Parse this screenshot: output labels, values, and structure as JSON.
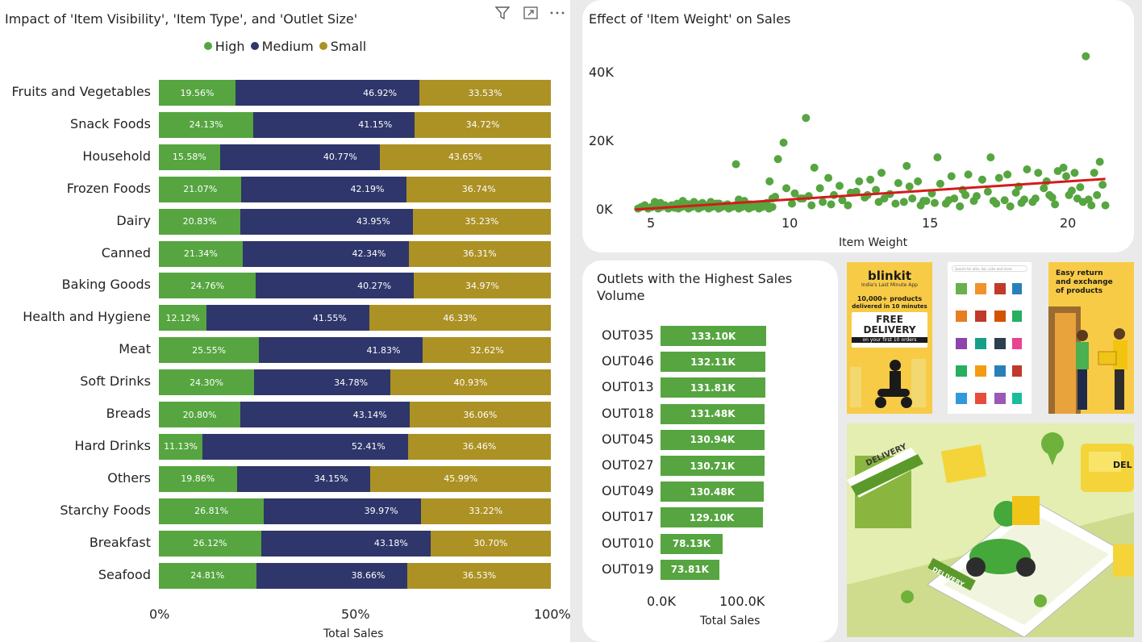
{
  "stack_chart": {
    "title": "Impact of 'Item Visibility', 'Item Type', and 'Outlet Size'",
    "legend": [
      {
        "label": "High",
        "color": "#56a540"
      },
      {
        "label": "Medium",
        "color": "#2e366b"
      },
      {
        "label": "Small",
        "color": "#ac9124"
      }
    ],
    "x_ticks": [
      "0%",
      "50%",
      "100%"
    ],
    "x_title": "Total Sales",
    "icons": [
      "filter-icon",
      "focus-mode-icon",
      "more-options-icon"
    ]
  },
  "scatter_chart": {
    "title": "Effect of 'Item Weight' on Sales",
    "y_ticks": [
      "40K",
      "20K",
      "0K"
    ],
    "x_ticks": [
      "5",
      "10",
      "15",
      "20"
    ],
    "x_title": "Item Weight",
    "point_color": "#56a540",
    "trend_color": "#d41b1b"
  },
  "outlets_chart": {
    "title_line1": "Outlets with the Highest Sales",
    "title_line2": "Volume",
    "x_ticks": [
      "0.0K",
      "100.0K"
    ],
    "x_title": "Total Sales",
    "bar_color": "#56a540"
  },
  "ads": {
    "blinkit": {
      "logo": "blinkit",
      "tagline": "India's Last Minute App",
      "line1": "10,000+ products",
      "line2": "delivered in 10 minutes",
      "badge1": "FREE",
      "badge2": "DELIVERY",
      "badge3": "on your first 10 orders"
    },
    "search_placeholder": "Search for atta, dal, coke and more",
    "return_ad": {
      "line1": "Easy return",
      "line2": "and exchange",
      "line3": "of products"
    },
    "delivery_signs": [
      "DELIVERY",
      "DELIVERY",
      "DEL"
    ]
  },
  "chart_data": [
    {
      "type": "bar",
      "orientation": "horizontal-stacked-100",
      "title": "Impact of 'Item Visibility', 'Item Type', and 'Outlet Size'",
      "xlabel": "Total Sales",
      "xlim": [
        0,
        100
      ],
      "legend_position": "top",
      "categories": [
        "Fruits and Vegetables",
        "Snack Foods",
        "Household",
        "Frozen Foods",
        "Dairy",
        "Canned",
        "Baking Goods",
        "Health and Hygiene",
        "Meat",
        "Soft Drinks",
        "Breads",
        "Hard Drinks",
        "Others",
        "Starchy Foods",
        "Breakfast",
        "Seafood"
      ],
      "series": [
        {
          "name": "High",
          "values": [
            19.56,
            24.13,
            15.58,
            21.07,
            20.83,
            21.34,
            24.76,
            12.12,
            25.55,
            24.3,
            20.8,
            11.13,
            19.86,
            26.81,
            26.12,
            24.81
          ],
          "labels": [
            "19.56%",
            "24.13%",
            "15.58%",
            "21.07%",
            "20.83%",
            "21.34%",
            "24.76%",
            "12.12%",
            "25.55%",
            "24.30%",
            "20.80%",
            "11.13%",
            "19.86%",
            "26.81%",
            "26.12%",
            "24.81%"
          ]
        },
        {
          "name": "Medium",
          "values": [
            46.92,
            41.15,
            40.77,
            42.19,
            43.95,
            42.34,
            40.27,
            41.55,
            41.83,
            34.78,
            43.14,
            52.41,
            34.15,
            39.97,
            43.18,
            38.66
          ],
          "labels": [
            "46.92%",
            "41.15%",
            "40.77%",
            "42.19%",
            "43.95%",
            "42.34%",
            "40.27%",
            "41.55%",
            "41.83%",
            "34.78%",
            "43.14%",
            "52.41%",
            "34.15%",
            "39.97%",
            "43.18%",
            "38.66%"
          ]
        },
        {
          "name": "Small",
          "values": [
            33.53,
            34.72,
            43.65,
            36.74,
            35.23,
            36.31,
            34.97,
            46.33,
            32.62,
            40.93,
            36.06,
            36.46,
            45.99,
            33.22,
            30.7,
            36.53
          ],
          "labels": [
            "33.53%",
            "34.72%",
            "43.65%",
            "36.74%",
            "35.23%",
            "36.31%",
            "34.97%",
            "46.33%",
            "32.62%",
            "40.93%",
            "36.06%",
            "36.46%",
            "45.99%",
            "33.22%",
            "30.70%",
            "36.53%"
          ]
        }
      ]
    },
    {
      "type": "scatter",
      "title": "Effect of 'Item Weight' on Sales",
      "xlabel": "Item Weight",
      "xlim": [
        4.2,
        21.5
      ],
      "ylim": [
        -1500,
        48000
      ],
      "trend_line": [
        [
          4.5,
          300
        ],
        [
          21.3,
          9200
        ]
      ],
      "x": [
        20.6,
        10.6,
        9.8,
        8.1,
        9.6,
        9.3,
        10.9,
        15.3,
        17.2,
        19.8,
        21.1,
        13.3,
        14.2,
        18.5,
        19.2,
        16.4,
        11.4,
        12.5,
        13.9,
        17.8,
        18.9,
        20.2,
        15.8,
        16.9,
        19.6,
        20.9,
        9.9,
        11.8,
        12.9,
        14.6,
        15.4,
        17.5,
        18.2,
        19.9,
        20.4,
        21.2,
        10.2,
        11.1,
        12.2,
        13.1,
        14.3,
        15.1,
        16.2,
        17.1,
        18.1,
        19.1,
        20.1,
        21.0,
        10.4,
        11.6,
        12.7,
        13.6,
        14.9,
        15.9,
        16.7,
        17.7,
        18.7,
        19.4,
        20.7,
        9.5,
        10.7,
        11.9,
        12.4,
        13.4,
        14.1,
        14.8,
        15.6,
        16.3,
        17.3,
        18.4,
        19.3,
        20.3,
        21.3,
        9.2,
        9.4,
        10.1,
        10.5,
        10.8,
        11.2,
        11.5,
        12.1,
        12.8,
        13.2,
        13.8,
        14.4,
        14.7,
        15.2,
        15.7,
        16.1,
        16.6,
        17.4,
        17.9,
        18.3,
        18.8,
        19.5,
        20.0,
        20.5,
        20.8,
        7.2,
        7.8,
        8.4,
        8.8,
        6.9,
        7.5,
        8.2,
        8.6,
        9.0,
        6.2,
        6.6,
        7.0,
        7.4,
        7.9,
        8.3,
        8.7,
        5.2,
        5.6,
        6.0,
        6.4,
        6.8,
        5.4,
        5.8,
        6.3,
        6.7,
        4.8,
        5.1,
        5.5,
        5.9
      ],
      "y": [
        45000,
        27000,
        19800,
        13500,
        15000,
        8500,
        12500,
        15500,
        15500,
        12500,
        14200,
        11000,
        13000,
        12000,
        8500,
        10500,
        9500,
        8500,
        8000,
        10500,
        11000,
        11000,
        10000,
        9000,
        11500,
        11000,
        6500,
        7200,
        9000,
        8500,
        7800,
        9500,
        7000,
        10000,
        6800,
        7500,
        5000,
        6500,
        5200,
        6000,
        7000,
        5000,
        6000,
        5500,
        5200,
        6500,
        5800,
        4500,
        3500,
        4500,
        3800,
        4800,
        2800,
        3500,
        4200,
        3000,
        2500,
        3800,
        3200,
        4000,
        4200,
        3000,
        5500,
        3500,
        2500,
        2800,
        2000,
        4500,
        2800,
        3200,
        4500,
        3500,
        1500,
        2200,
        3500,
        2000,
        3500,
        1500,
        2500,
        1800,
        1500,
        4500,
        2500,
        2000,
        3500,
        1500,
        2200,
        3000,
        1200,
        2800,
        2000,
        1200,
        2200,
        3500,
        1800,
        4500,
        2500,
        1500,
        2500,
        1800,
        2800,
        1500,
        2200,
        2000,
        3200,
        1800,
        1500,
        2800,
        2500,
        1500,
        2000,
        1200,
        1800,
        1500,
        2500,
        1200,
        2000,
        1800,
        1500,
        2200,
        1500,
        2000,
        1800,
        1200,
        1000,
        1500,
        800
      ]
    },
    {
      "type": "bar",
      "orientation": "horizontal",
      "title": "Outlets with the Highest Sales Volume",
      "xlabel": "Total Sales",
      "xlim": [
        0,
        180000
      ],
      "categories": [
        "OUT035",
        "OUT046",
        "OUT013",
        "OUT018",
        "OUT045",
        "OUT027",
        "OUT049",
        "OUT017",
        "OUT010",
        "OUT019"
      ],
      "values": [
        133100,
        132110,
        131810,
        131480,
        130940,
        130710,
        130480,
        129100,
        78130,
        73810
      ],
      "labels": [
        "133.10K",
        "132.11K",
        "131.81K",
        "131.48K",
        "130.94K",
        "130.71K",
        "130.48K",
        "129.10K",
        "78.13K",
        "73.81K"
      ]
    }
  ]
}
